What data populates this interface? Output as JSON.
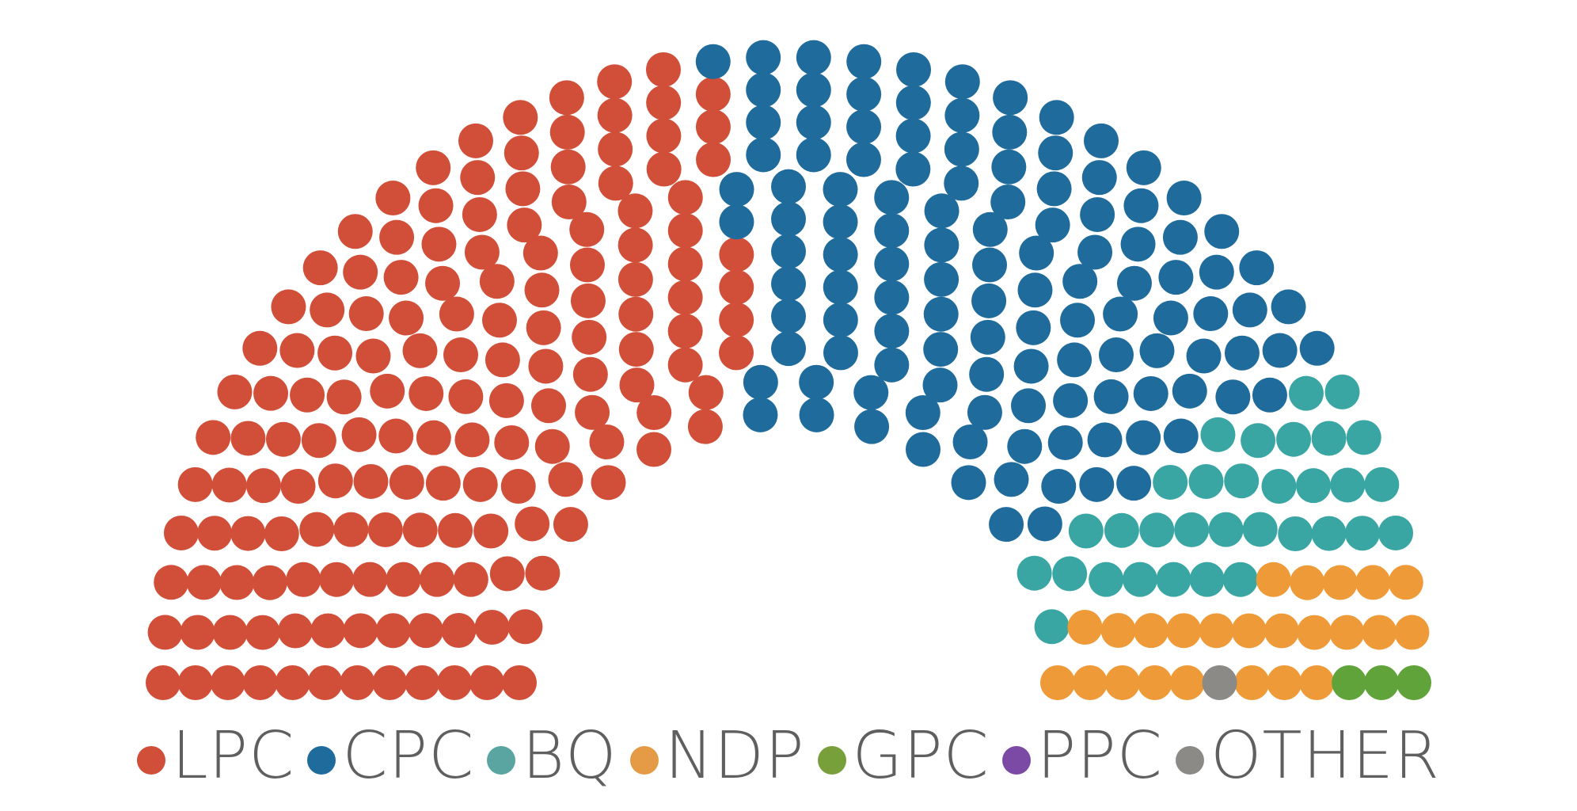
{
  "chart_data": {
    "type": "parliament",
    "total_seats": 338,
    "parties": [
      {
        "name": "LPC",
        "seats": 157,
        "color": "#d14f39"
      },
      {
        "name": "CPC",
        "seats": 121,
        "color": "#1f6b9c"
      },
      {
        "name": "BQ",
        "seats": 32,
        "color": "#39a6a3"
      },
      {
        "name": "NDP",
        "seats": 24,
        "color": "#ef9a38"
      },
      {
        "name": "GPC",
        "seats": 3,
        "color": "#5fa33a"
      },
      {
        "name": "PPC",
        "seats": 0,
        "color": "#7a4aa4"
      },
      {
        "name": "OTHER",
        "seats": 1,
        "color": "#8c8a86"
      }
    ],
    "legend": [
      {
        "label": "LPC",
        "color": "#d14f39"
      },
      {
        "label": "CPC",
        "color": "#1f6b9c"
      },
      {
        "label": "BQ",
        "color": "#5aa5a2"
      },
      {
        "label": "NDP",
        "color": "#e59a45"
      },
      {
        "label": "GPC",
        "color": "#779f3a"
      },
      {
        "label": "PPC",
        "color": "#7a4aa4"
      },
      {
        "label": "OTHER",
        "color": "#8c8a86"
      }
    ]
  }
}
